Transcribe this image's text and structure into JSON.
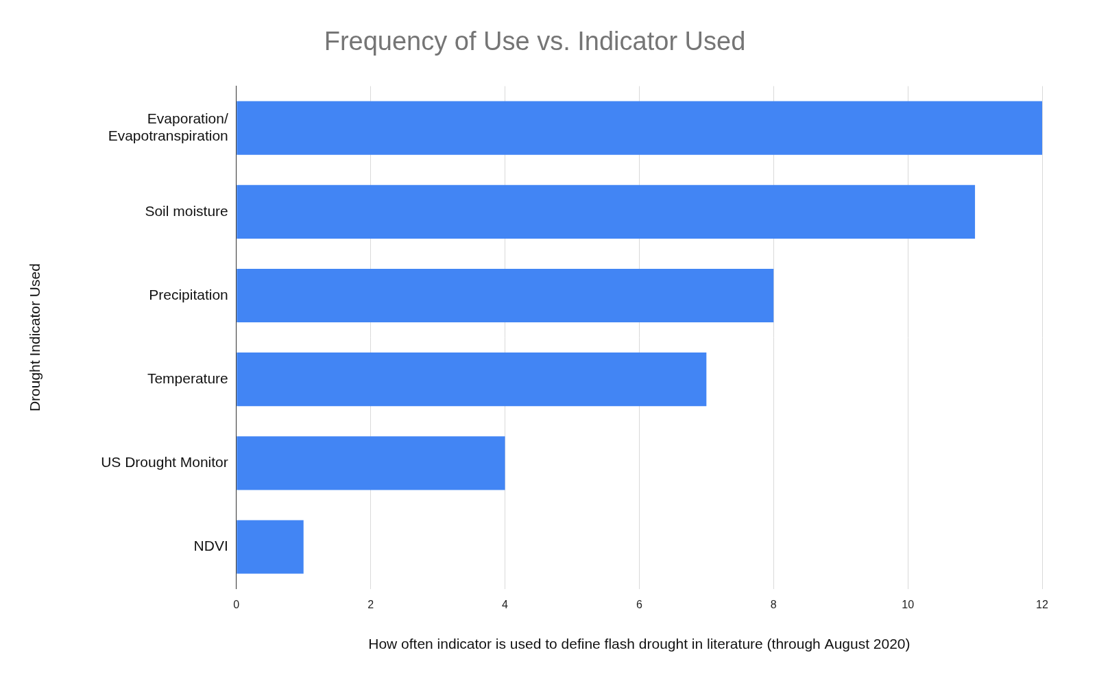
{
  "chart_data": {
    "type": "bar",
    "orientation": "horizontal",
    "title": "Frequency of Use vs. Indicator Used",
    "x_label": "How often indicator is used to define flash drought in literature (through August 2020)",
    "y_label": "Drought Indicator Used",
    "categories": [
      "Evaporation/ Evapotranspiration",
      "Soil moisture",
      "Precipitation",
      "Temperature",
      "US Drought Monitor",
      "NDVI"
    ],
    "values": [
      12,
      11,
      8,
      7,
      4,
      1
    ],
    "color": "#4285f4",
    "xlim": [
      0,
      12
    ],
    "xticks": [
      0,
      2,
      4,
      6,
      8,
      10,
      12
    ],
    "grid": true
  }
}
